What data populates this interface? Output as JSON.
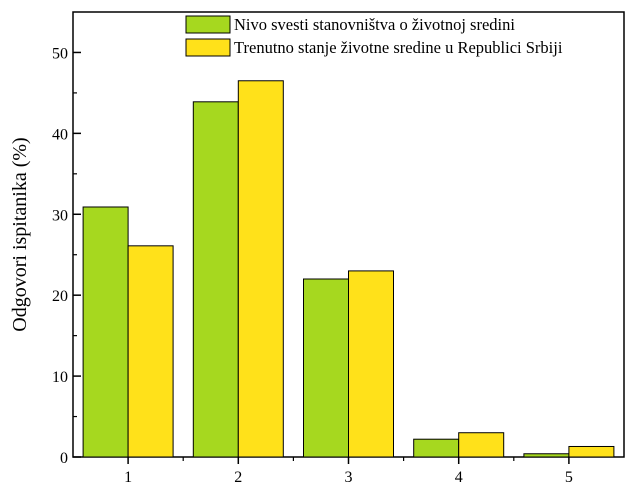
{
  "chart_data": {
    "type": "bar",
    "title": "",
    "xlabel": "",
    "ylabel": "Odgovori ispitanika (%)",
    "categories": [
      "1",
      "2",
      "3",
      "4",
      "5"
    ],
    "ylim": [
      0,
      55
    ],
    "yticks": [
      0,
      10,
      20,
      30,
      40,
      50
    ],
    "grid": false,
    "legend_position": "top-right",
    "series": [
      {
        "name": "Nivo svesti stanovništva o životnoj sredini",
        "color": "#a6d81f",
        "values": [
          30.9,
          43.9,
          22.0,
          2.2,
          0.4
        ]
      },
      {
        "name": "Trenutno stanje životne sredine u Republici Srbiji",
        "color": "#ffe11a",
        "values": [
          26.1,
          46.5,
          23.0,
          3.0,
          1.3
        ]
      }
    ]
  }
}
